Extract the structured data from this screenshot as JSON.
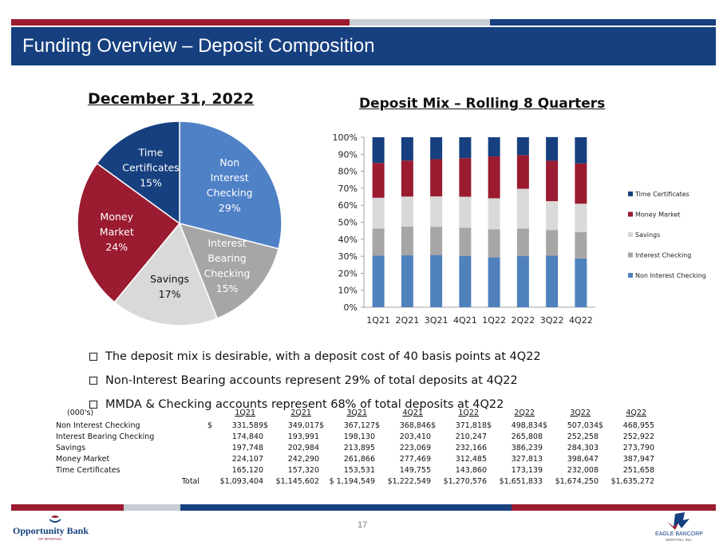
{
  "header": {
    "title": "Funding Overview – Deposit Composition"
  },
  "colors": {
    "navy": "#16407f",
    "maroon": "#9b1b30",
    "gray": "#a6a6a6",
    "light": "#d9d9d9",
    "blue": "#4f81bd",
    "pie_blue": "#4f81c7"
  },
  "pie": {
    "title": "December 31, 2022",
    "slices": [
      {
        "lines": [
          "Non",
          "Interest",
          "Checking",
          "29%"
        ],
        "value": 29,
        "color": "#4f81c7",
        "label_color": "#ffffff"
      },
      {
        "lines": [
          "Interest",
          "Bearing",
          "Checking",
          "15%"
        ],
        "value": 15,
        "color": "#a6a6a6",
        "label_color": "#ffffff"
      },
      {
        "lines": [
          "Savings",
          "17%"
        ],
        "value": 17,
        "color": "#d9d9d9",
        "label_color": "#111111"
      },
      {
        "lines": [
          "Money",
          "Market",
          "24%"
        ],
        "value": 24,
        "color": "#9b1b30",
        "label_color": "#ffffff"
      },
      {
        "lines": [
          "Time",
          "Certificates",
          "15%"
        ],
        "value": 15,
        "color": "#16407f",
        "label_color": "#ffffff"
      }
    ]
  },
  "chart_data": {
    "type": "bar",
    "title": "Deposit Mix – Rolling 8 Quarters",
    "stacked": "percent",
    "categories": [
      "1Q21",
      "2Q21",
      "3Q21",
      "4Q21",
      "1Q22",
      "2Q22",
      "3Q22",
      "4Q22"
    ],
    "ylim": [
      0,
      100
    ],
    "yticks": [
      "0%",
      "10%",
      "20%",
      "30%",
      "40%",
      "50%",
      "60%",
      "70%",
      "80%",
      "90%",
      "100%"
    ],
    "legend_position": "right",
    "series": [
      {
        "name": "Non Interest Checking",
        "color": "#4f81bd",
        "values": [
          30.3,
          30.5,
          30.7,
          30.2,
          29.3,
          30.2,
          30.3,
          28.7
        ]
      },
      {
        "name": "Interest Checking",
        "color": "#a6a6a6",
        "values": [
          16.0,
          16.9,
          16.6,
          16.6,
          16.5,
          16.1,
          15.1,
          15.5
        ]
      },
      {
        "name": "Savings",
        "color": "#d9d9d9",
        "values": [
          18.1,
          17.7,
          17.9,
          18.2,
          18.3,
          23.4,
          17.0,
          16.7
        ]
      },
      {
        "name": "Money Market",
        "color": "#9b1b30",
        "values": [
          20.5,
          21.2,
          21.9,
          22.7,
          24.6,
          19.8,
          23.8,
          23.7
        ]
      },
      {
        "name": "Time Certificates",
        "color": "#16407f",
        "values": [
          15.1,
          13.7,
          12.9,
          12.3,
          11.3,
          10.5,
          13.9,
          15.4
        ]
      }
    ]
  },
  "bullets": [
    "The deposit mix is desirable, with a deposit cost of 40 basis points at 4Q22",
    "Non-Interest Bearing accounts represent 29% of total deposits at 4Q22",
    "MMDA & Checking accounts represent 68% of total deposits at 4Q22"
  ],
  "table": {
    "unit_label": "(000's)",
    "columns": [
      "1Q21",
      "2Q21",
      "3Q21",
      "4Q21",
      "1Q22",
      "2Q22",
      "3Q22",
      "4Q22"
    ],
    "currency": "$",
    "rows": [
      {
        "label": "Non Interest Checking",
        "currency": true,
        "values": [
          "331,589",
          "349,017",
          "367,127",
          "368,846",
          "371,818",
          "498,834",
          "507,034",
          "468,955"
        ]
      },
      {
        "label": "Interest Bearing Checking",
        "currency": false,
        "values": [
          "174,840",
          "193,991",
          "198,130",
          "203,410",
          "210,247",
          "265,808",
          "252,258",
          "252,922"
        ]
      },
      {
        "label": "Savings",
        "currency": false,
        "values": [
          "197,748",
          "202,984",
          "213,895",
          "223,069",
          "232,166",
          "386,239",
          "284,303",
          "273,790"
        ]
      },
      {
        "label": "Money Market",
        "currency": false,
        "values": [
          "224,107",
          "242,290",
          "261,866",
          "277,469",
          "312,485",
          "327,813",
          "398,647",
          "387,947"
        ]
      },
      {
        "label": "Time Certificates",
        "currency": false,
        "values": [
          "165,120",
          "157,320",
          "153,531",
          "149,755",
          "143,860",
          "173,139",
          "232,008",
          "251,658"
        ]
      }
    ],
    "total": {
      "label": "Total",
      "values": [
        "$1,093,404",
        "$1,145,602",
        "$ 1,194,549",
        "$1,222,549",
        "$1,270,576",
        "$1,651,833",
        "$1,674,250",
        "$1,635,272"
      ]
    }
  },
  "footer": {
    "page_number": "17",
    "left_logo": {
      "name": "Opportunity Bank",
      "sub": "OF MONTANA"
    },
    "right_logo": {
      "name": "EAGLE BANCORP",
      "sub": "MONTANA, INC."
    }
  }
}
